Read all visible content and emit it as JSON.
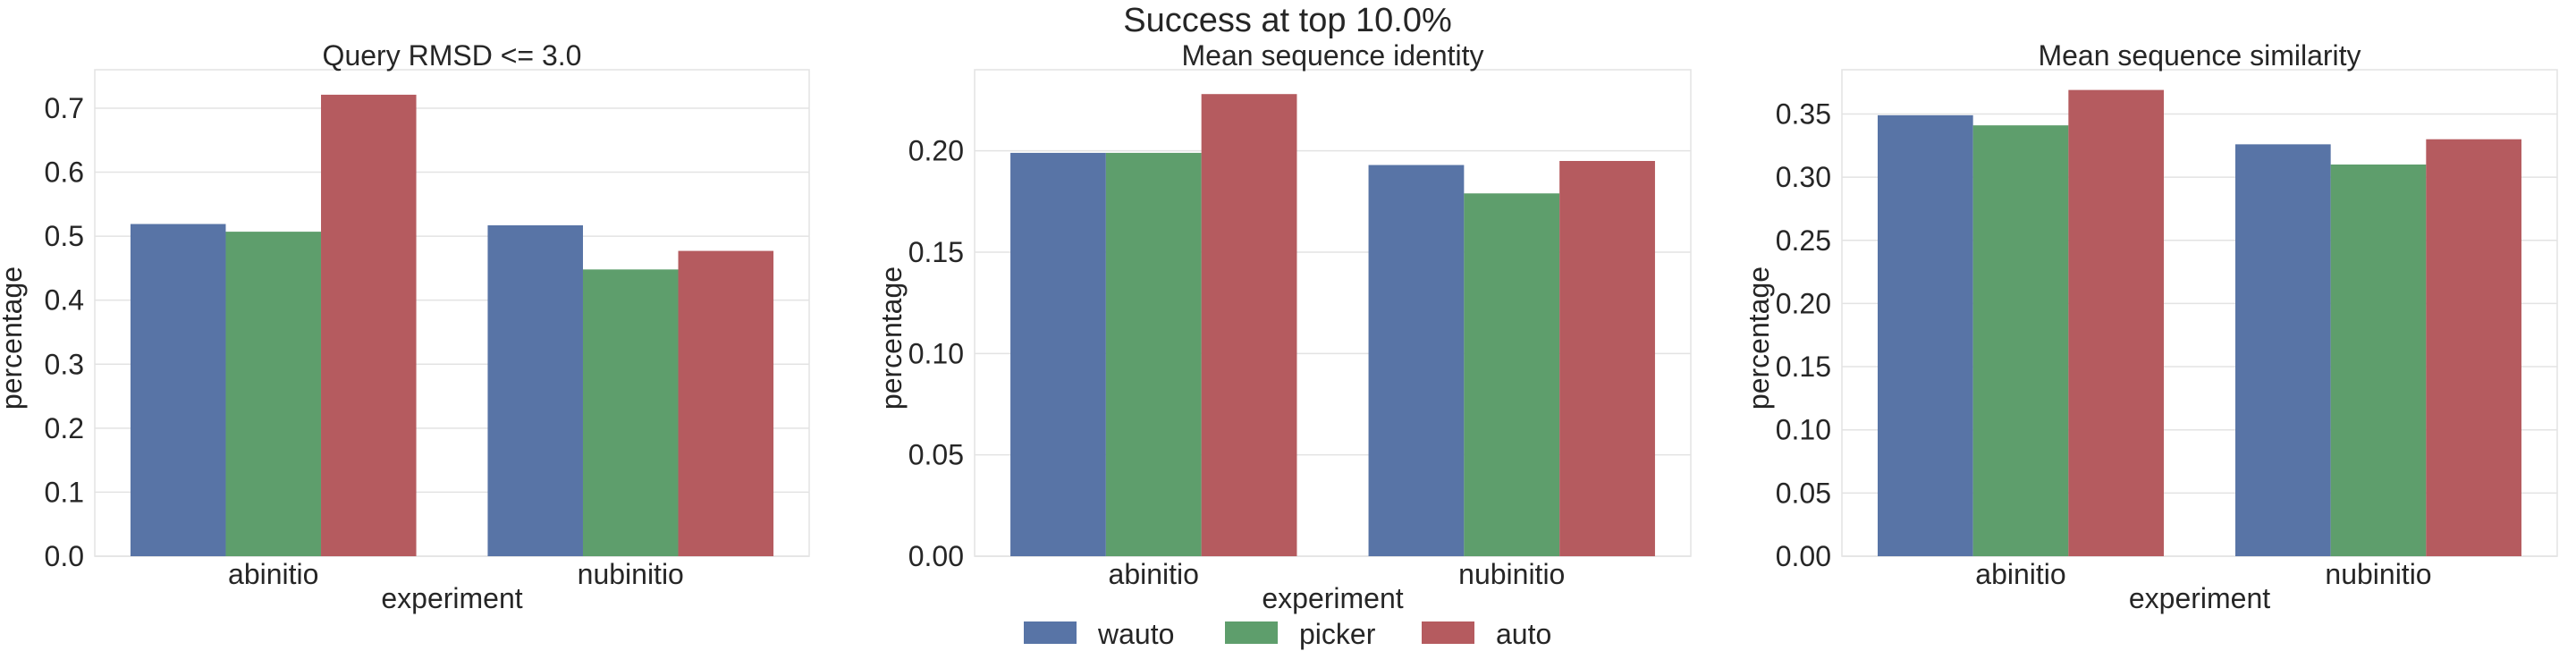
{
  "suptitle": "Success at top 10.0%",
  "legend": {
    "placement": "bottom-center",
    "entries": [
      {
        "label": "wauto",
        "color": "#5874a6"
      },
      {
        "label": "picker",
        "color": "#5e9e6c"
      },
      {
        "label": "auto",
        "color": "#b55b5f"
      }
    ]
  },
  "chart_data": [
    {
      "type": "bar",
      "title": "Query RMSD <= 3.0",
      "xlabel": "experiment",
      "ylabel": "percentage",
      "categories": [
        "abinitio",
        "nubinitio"
      ],
      "ylim": [
        0,
        0.76
      ],
      "yticks": [
        0.0,
        0.1,
        0.2,
        0.3,
        0.4,
        0.5,
        0.6,
        0.7
      ],
      "ytick_labels": [
        "0.0",
        "0.1",
        "0.2",
        "0.3",
        "0.4",
        "0.5",
        "0.6",
        "0.7"
      ],
      "grid": true,
      "series": [
        {
          "name": "wauto",
          "values": [
            0.519,
            0.517
          ]
        },
        {
          "name": "picker",
          "values": [
            0.507,
            0.448
          ]
        },
        {
          "name": "auto",
          "values": [
            0.721,
            0.477
          ]
        }
      ]
    },
    {
      "type": "bar",
      "title": "Mean sequence identity",
      "xlabel": "experiment",
      "ylabel": "percentage",
      "categories": [
        "abinitio",
        "nubinitio"
      ],
      "ylim": [
        0,
        0.24
      ],
      "yticks": [
        0.0,
        0.05,
        0.1,
        0.15,
        0.2
      ],
      "ytick_labels": [
        "0.00",
        "0.05",
        "0.10",
        "0.15",
        "0.20"
      ],
      "grid": true,
      "series": [
        {
          "name": "wauto",
          "values": [
            0.199,
            0.193
          ]
        },
        {
          "name": "picker",
          "values": [
            0.199,
            0.179
          ]
        },
        {
          "name": "auto",
          "values": [
            0.228,
            0.195
          ]
        }
      ]
    },
    {
      "type": "bar",
      "title": "Mean sequence similarity",
      "xlabel": "experiment",
      "ylabel": "percentage",
      "categories": [
        "abinitio",
        "nubinitio"
      ],
      "ylim": [
        0,
        0.385
      ],
      "yticks": [
        0.0,
        0.05,
        0.1,
        0.15,
        0.2,
        0.25,
        0.3,
        0.35
      ],
      "ytick_labels": [
        "0.00",
        "0.05",
        "0.10",
        "0.15",
        "0.20",
        "0.25",
        "0.30",
        "0.35"
      ],
      "grid": true,
      "series": [
        {
          "name": "wauto",
          "values": [
            0.349,
            0.326
          ]
        },
        {
          "name": "picker",
          "values": [
            0.341,
            0.31
          ]
        },
        {
          "name": "auto",
          "values": [
            0.369,
            0.33
          ]
        }
      ]
    }
  ]
}
